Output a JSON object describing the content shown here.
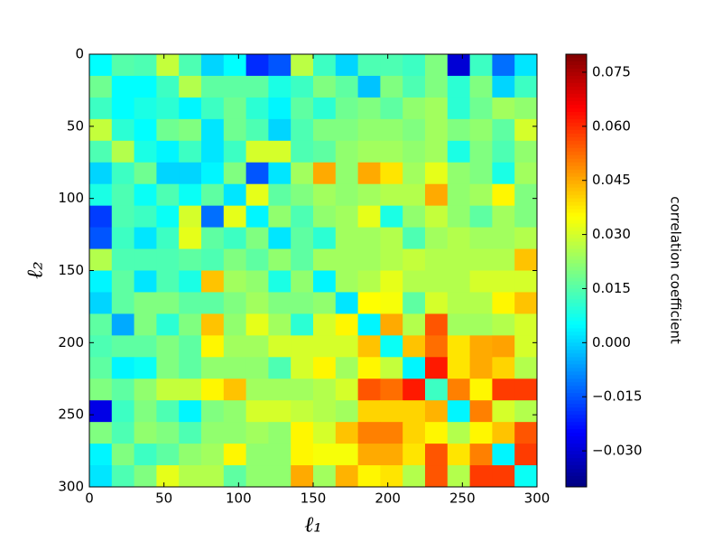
{
  "chart_data": {
    "type": "heatmap",
    "xlabel": "ℓ₁",
    "ylabel": "ℓ₂",
    "colorbar_label": "correlation coefficient",
    "xlim": [
      0,
      300
    ],
    "ylim": [
      300,
      0
    ],
    "xticks": [
      0,
      50,
      100,
      150,
      200,
      250,
      300
    ],
    "yticks": [
      0,
      50,
      100,
      150,
      200,
      250,
      300
    ],
    "colormap": "jet",
    "clim": [
      -0.04,
      0.08
    ],
    "cticks": [
      {
        "value": -0.03,
        "label": "−0.030"
      },
      {
        "value": -0.015,
        "label": "−0.015"
      },
      {
        "value": 0,
        "label": "0.000"
      },
      {
        "value": 0.015,
        "label": "0.015"
      },
      {
        "value": 0.03,
        "label": "0.030"
      },
      {
        "value": 0.045,
        "label": "0.045"
      },
      {
        "value": 0.06,
        "label": "0.060"
      },
      {
        "value": 0.075,
        "label": "0.075"
      }
    ],
    "z": [
      [
        0.005,
        0.015,
        0.014,
        0.028,
        0.014,
        0.0,
        0.005,
        -0.02,
        -0.015,
        0.027,
        0.012,
        0.0,
        0.014,
        0.014,
        0.012,
        0.02,
        -0.03,
        0.012,
        -0.012,
        0.002
      ],
      [
        0.018,
        0.005,
        0.005,
        0.012,
        0.026,
        0.016,
        0.016,
        0.016,
        0.008,
        0.012,
        0.02,
        0.016,
        -0.002,
        0.02,
        0.014,
        0.02,
        0.01,
        0.02,
        0.0,
        0.012
      ],
      [
        0.012,
        0.005,
        0.008,
        0.01,
        0.004,
        0.012,
        0.018,
        0.01,
        0.004,
        0.016,
        0.01,
        0.018,
        0.02,
        0.016,
        0.022,
        0.024,
        0.01,
        0.018,
        0.024,
        0.022
      ],
      [
        0.028,
        0.01,
        0.005,
        0.018,
        0.02,
        0.002,
        0.018,
        0.014,
        0.0,
        0.014,
        0.02,
        0.02,
        0.022,
        0.022,
        0.02,
        0.024,
        0.02,
        0.022,
        0.016,
        0.03
      ],
      [
        0.014,
        0.026,
        0.008,
        0.004,
        0.012,
        0.002,
        0.012,
        0.03,
        0.03,
        0.014,
        0.016,
        0.022,
        0.024,
        0.024,
        0.022,
        0.024,
        0.008,
        0.02,
        0.014,
        0.022
      ],
      [
        0.0,
        0.012,
        0.018,
        0.0,
        0.0,
        0.004,
        0.02,
        -0.015,
        0.002,
        0.024,
        0.045,
        0.022,
        0.045,
        0.038,
        0.024,
        0.032,
        0.022,
        0.02,
        0.008,
        0.024
      ],
      [
        0.008,
        0.014,
        0.006,
        0.014,
        0.006,
        0.016,
        0.002,
        0.032,
        0.016,
        0.02,
        0.024,
        0.022,
        0.024,
        0.026,
        0.026,
        0.045,
        0.022,
        0.024,
        0.036,
        0.02
      ],
      [
        -0.018,
        0.014,
        0.012,
        0.006,
        0.03,
        -0.012,
        0.032,
        0.004,
        0.022,
        0.014,
        0.022,
        0.024,
        0.032,
        0.008,
        0.022,
        0.028,
        0.022,
        0.016,
        0.024,
        0.02
      ],
      [
        -0.015,
        0.012,
        0.002,
        0.012,
        0.032,
        0.016,
        0.012,
        0.02,
        0.002,
        0.016,
        0.01,
        0.024,
        0.024,
        0.026,
        0.014,
        0.024,
        0.026,
        0.024,
        0.024,
        0.026
      ],
      [
        0.026,
        0.014,
        0.014,
        0.014,
        0.016,
        0.014,
        0.02,
        0.016,
        0.022,
        0.016,
        0.024,
        0.024,
        0.024,
        0.026,
        0.028,
        0.026,
        0.026,
        0.026,
        0.026,
        0.042
      ],
      [
        0.004,
        0.016,
        0.002,
        0.014,
        0.008,
        0.042,
        0.024,
        0.022,
        0.008,
        0.022,
        0.004,
        0.024,
        0.026,
        0.032,
        0.026,
        0.026,
        0.026,
        0.03,
        0.03,
        0.03
      ],
      [
        0.0,
        0.016,
        0.02,
        0.02,
        0.016,
        0.016,
        0.02,
        0.024,
        0.02,
        0.02,
        0.022,
        0.002,
        0.035,
        0.034,
        0.016,
        0.03,
        0.026,
        0.026,
        0.036,
        0.042
      ],
      [
        0.016,
        -0.005,
        0.02,
        0.01,
        0.02,
        0.042,
        0.022,
        0.032,
        0.024,
        0.01,
        0.03,
        0.036,
        0.004,
        0.045,
        0.026,
        0.055,
        0.024,
        0.024,
        0.026,
        0.03
      ],
      [
        0.014,
        0.016,
        0.016,
        0.02,
        0.016,
        0.036,
        0.024,
        0.024,
        0.03,
        0.03,
        0.03,
        0.03,
        0.042,
        0.006,
        0.042,
        0.052,
        0.038,
        0.045,
        0.046,
        0.03
      ],
      [
        0.016,
        0.004,
        0.006,
        0.02,
        0.016,
        0.022,
        0.022,
        0.022,
        0.014,
        0.03,
        0.036,
        0.024,
        0.036,
        0.028,
        0.004,
        0.062,
        0.038,
        0.045,
        0.04,
        0.026
      ],
      [
        0.02,
        0.016,
        0.022,
        0.028,
        0.028,
        0.036,
        0.042,
        0.024,
        0.024,
        0.024,
        0.026,
        0.03,
        0.055,
        0.052,
        0.062,
        0.012,
        0.05,
        0.036,
        0.058,
        0.058
      ],
      [
        -0.028,
        0.012,
        0.02,
        0.014,
        0.004,
        0.02,
        0.022,
        0.03,
        0.03,
        0.028,
        0.026,
        0.024,
        0.04,
        0.04,
        0.04,
        0.044,
        0.004,
        0.05,
        0.03,
        0.026
      ],
      [
        0.02,
        0.014,
        0.022,
        0.02,
        0.014,
        0.022,
        0.022,
        0.024,
        0.022,
        0.036,
        0.03,
        0.042,
        0.05,
        0.05,
        0.04,
        0.036,
        0.026,
        0.036,
        0.042,
        0.055
      ],
      [
        0.004,
        0.02,
        0.012,
        0.016,
        0.022,
        0.024,
        0.036,
        0.022,
        0.022,
        0.036,
        0.034,
        0.034,
        0.045,
        0.045,
        0.038,
        0.055,
        0.038,
        0.05,
        0.004,
        0.058
      ],
      [
        0.002,
        0.014,
        0.02,
        0.032,
        0.026,
        0.026,
        0.016,
        0.022,
        0.022,
        0.045,
        0.024,
        0.044,
        0.036,
        0.038,
        0.026,
        0.055,
        0.026,
        0.058,
        0.058,
        0.006
      ]
    ]
  }
}
